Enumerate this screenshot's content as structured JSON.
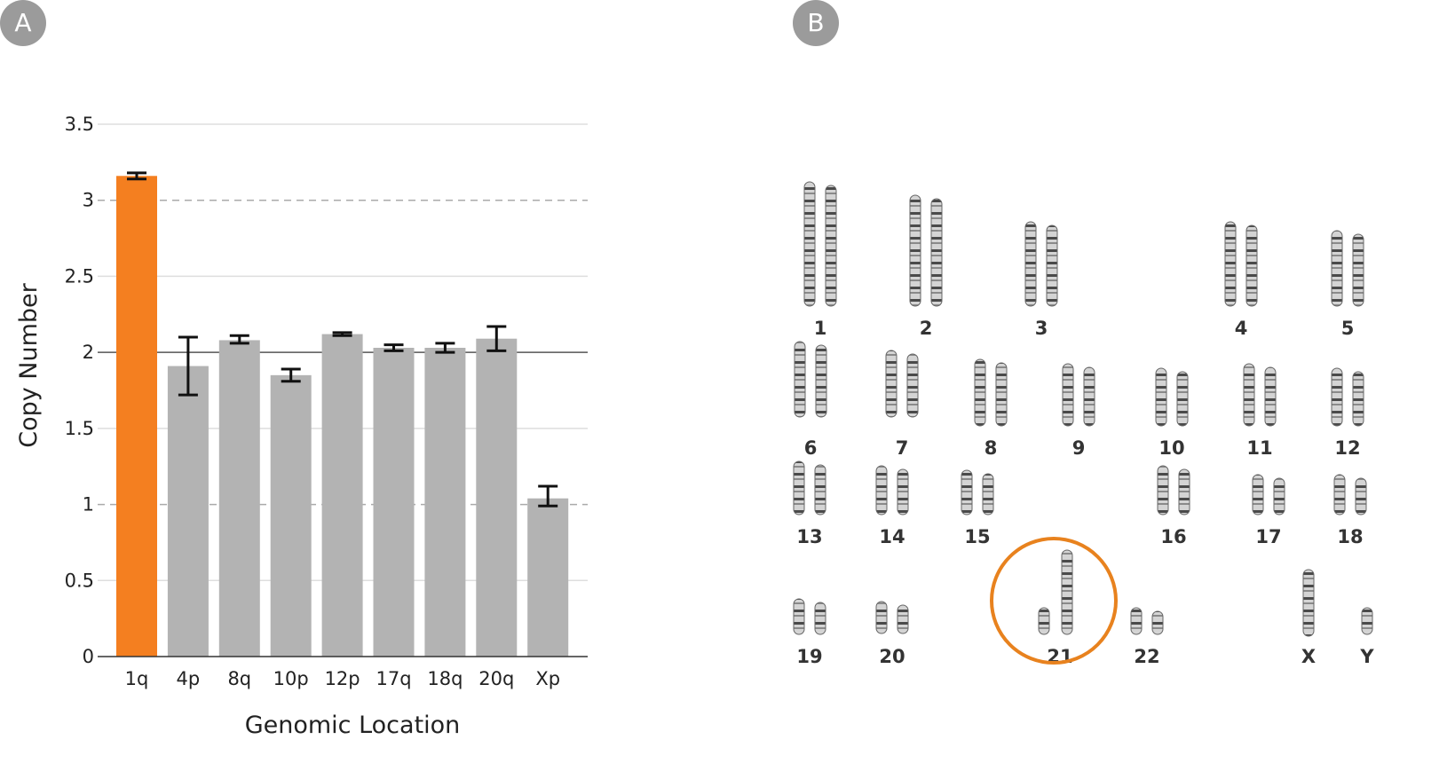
{
  "panels": {
    "a_label": "A",
    "b_label": "B"
  },
  "chart_data": {
    "type": "bar",
    "title": "",
    "xlabel": "Genomic Location",
    "ylabel": "Copy Number",
    "ylim": [
      0,
      3.5
    ],
    "yticks": [
      0,
      0.5,
      1,
      1.5,
      2,
      2.5,
      3,
      3.5
    ],
    "ytick_labels": [
      "0",
      "0.5",
      "1",
      "1.5",
      "2",
      "2.5",
      "3",
      "3.5"
    ],
    "categories": [
      "1q",
      "4p",
      "8q",
      "10p",
      "12p",
      "17q",
      "18q",
      "20q",
      "Xp"
    ],
    "values": [
      3.16,
      1.91,
      2.08,
      1.85,
      2.12,
      2.03,
      2.03,
      2.09,
      1.04
    ],
    "error_low": [
      3.14,
      1.72,
      2.06,
      1.81,
      2.11,
      2.01,
      2.0,
      2.01,
      0.99
    ],
    "error_high": [
      3.18,
      2.1,
      2.11,
      1.89,
      2.13,
      2.05,
      2.06,
      2.17,
      1.12
    ],
    "highlight_index": 0,
    "colors": {
      "bar": "#b3b3b3",
      "highlight": "#f47f20",
      "error": "#111111",
      "grid": "#dedede",
      "reference_line": "#555555",
      "dashed_line": "#aaaaaa"
    },
    "reference_line": 2,
    "dashed_lines": [
      3,
      1
    ],
    "grid": true
  },
  "karyotype": {
    "highlight_label": "21",
    "highlight_color": "#e8821e",
    "rows": [
      [
        "1",
        "2",
        "3",
        "4",
        "5"
      ],
      [
        "6",
        "7",
        "8",
        "9",
        "10",
        "11",
        "12"
      ],
      [
        "13",
        "14",
        "15",
        "16",
        "17",
        "18"
      ],
      [
        "19",
        "20",
        "21",
        "22",
        "X",
        "Y"
      ]
    ]
  }
}
